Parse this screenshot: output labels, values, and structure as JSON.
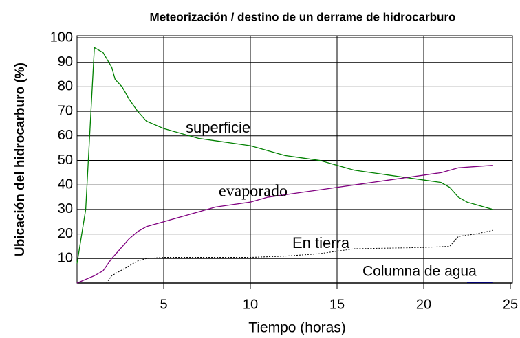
{
  "chart_data": {
    "type": "line",
    "title": "Meteorización / destino de un derrame de hidrocarburo",
    "xlabel": "Tiempo (horas)",
    "ylabel": "Ubicación del hidrocarburo (%)",
    "xlim": [
      0,
      25
    ],
    "ylim": [
      0,
      100
    ],
    "xticks": [
      5,
      10,
      15,
      20,
      25
    ],
    "yticks": [
      10,
      20,
      30,
      40,
      50,
      60,
      70,
      80,
      90,
      100
    ],
    "grid": true,
    "series": [
      {
        "name": "superficie",
        "color": "#008000",
        "x": [
          0,
          0.5,
          1,
          1.5,
          2,
          2.2,
          2.6,
          3,
          3.5,
          4,
          5,
          6,
          7,
          8,
          9,
          10,
          11,
          12,
          13,
          14,
          15,
          16,
          17,
          18,
          19,
          20,
          21,
          21.5,
          22,
          22.5,
          23,
          23.5,
          24
        ],
        "values": [
          8,
          30,
          96,
          94,
          88,
          83,
          80,
          75,
          70,
          66,
          63,
          61,
          59,
          58,
          57,
          56,
          54,
          52,
          51,
          50,
          48,
          46,
          45,
          44,
          43,
          42,
          41,
          39,
          35,
          33,
          32,
          31,
          30
        ]
      },
      {
        "name": "evaporado",
        "color": "#800080",
        "x": [
          0,
          1,
          1.5,
          2,
          2.5,
          3,
          3.5,
          4,
          5,
          6,
          7,
          8,
          9,
          10,
          11,
          12,
          13,
          14,
          15,
          16,
          17,
          18,
          19,
          20,
          21,
          22,
          23,
          24
        ],
        "values": [
          0,
          3,
          5,
          10,
          14,
          18,
          21,
          23,
          25,
          27,
          29,
          31,
          32,
          33,
          35,
          36,
          37,
          38,
          39,
          40,
          41,
          42,
          43,
          44,
          45,
          47,
          47.5,
          48
        ]
      },
      {
        "name": "En tierra",
        "color": "#000000",
        "dash": true,
        "x": [
          1.7,
          2,
          2.5,
          3,
          3.5,
          4,
          5,
          10,
          12,
          14,
          15,
          16,
          20,
          21.5,
          22,
          23,
          24
        ],
        "values": [
          0,
          3,
          5,
          7,
          9,
          10,
          10.5,
          10.5,
          11,
          12,
          13,
          14,
          14.5,
          15,
          19,
          20,
          21.5
        ]
      },
      {
        "name": "Columna de agua",
        "color": "#000080",
        "x": [
          22.5,
          24
        ],
        "values": [
          0.2,
          0.2
        ]
      }
    ]
  }
}
